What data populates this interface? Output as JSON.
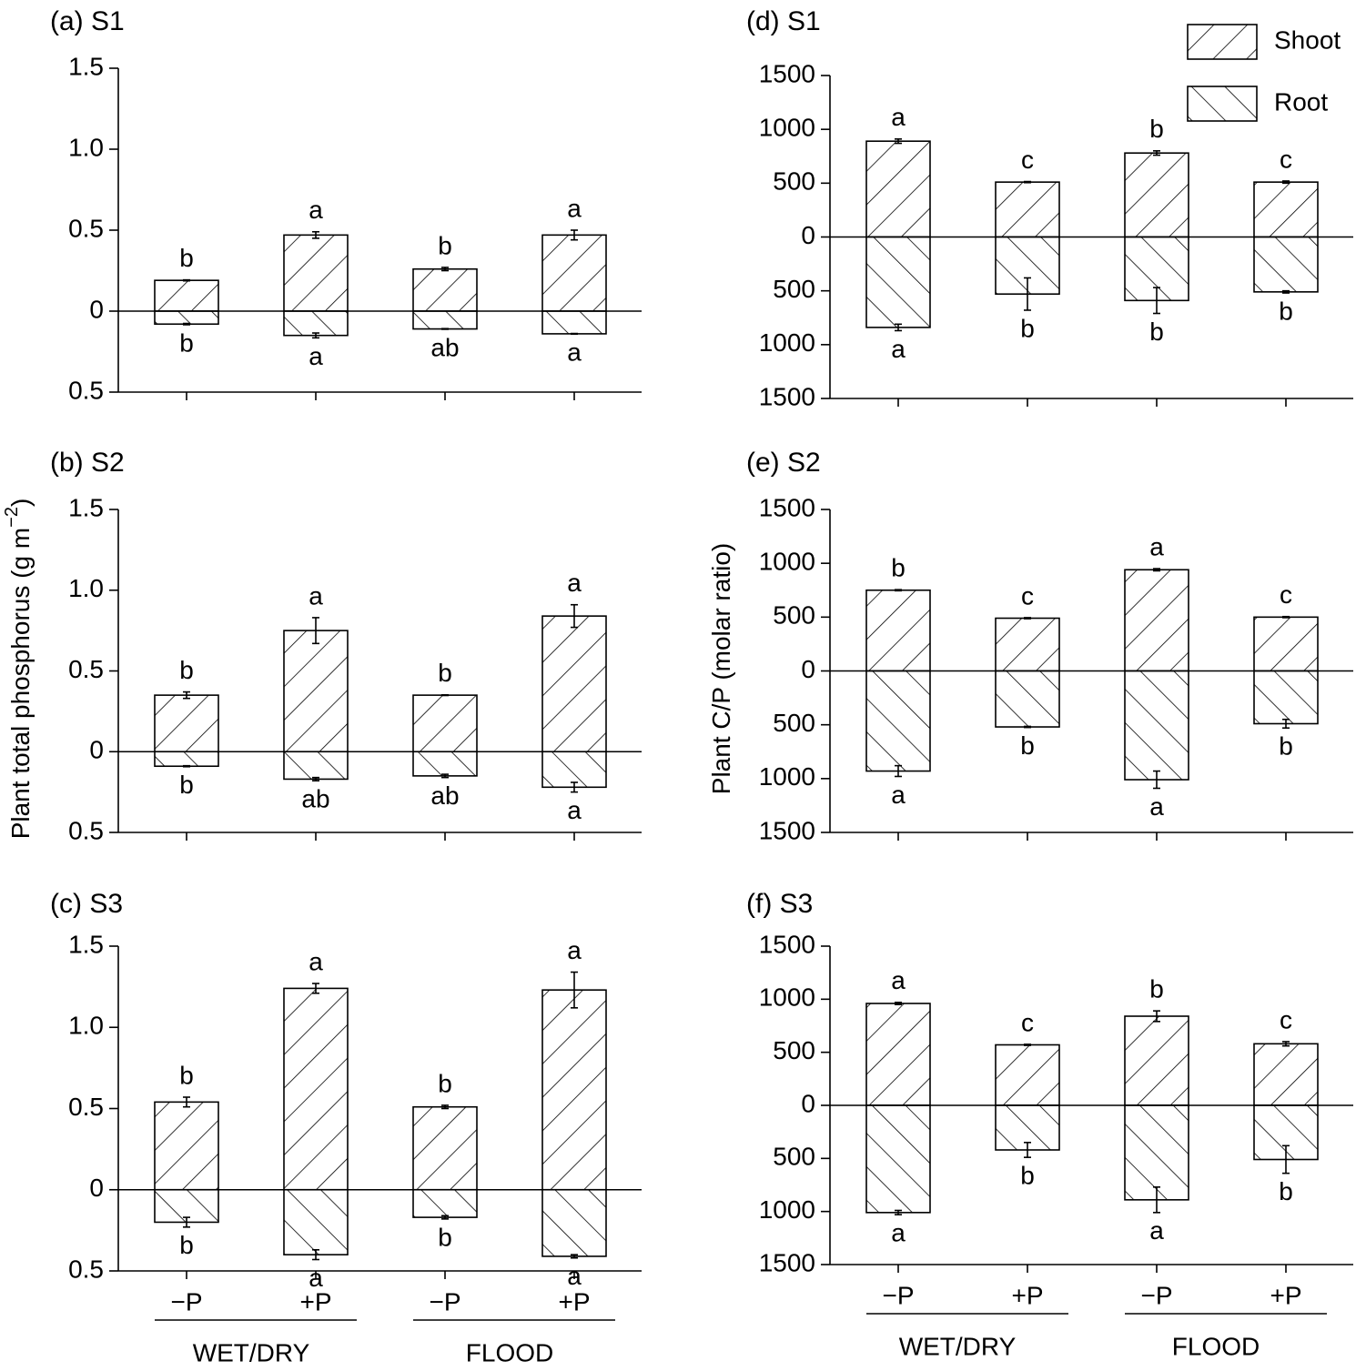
{
  "chart_data": [
    {
      "type": "bar",
      "title": "(a) S1",
      "ylim": [
        -0.5,
        1.5
      ],
      "yticks": [
        {
          "value": -0.5,
          "label": "0.5"
        },
        0,
        0.5,
        {
          "value": 1,
          "label": "1.0"
        },
        1.5
      ],
      "series": [
        {
          "color": "#000000",
          "hatch": "/",
          "values": [
            0.19,
            0.47,
            0.26,
            0.47
          ],
          "errors": [
            0.003,
            0.02,
            0.01,
            0.03
          ],
          "letters": [
            "b",
            "a",
            "b",
            "a"
          ]
        },
        {
          "color": "#000000",
          "hatch": "\\",
          "values": [
            -0.08,
            -0.15,
            -0.11,
            -0.14
          ],
          "errors": [
            0.004,
            0.015,
            0.002,
            0.002
          ],
          "letters": [
            "b",
            "a",
            "ab",
            "a"
          ]
        }
      ]
    },
    {
      "type": "bar",
      "title": "(b) S2",
      "ylabel": [
        "Plant total phosphorus (g m",
        "−2",
        ")"
      ],
      "ylim": [
        -0.5,
        1.5
      ],
      "yticks": [
        {
          "value": -0.5,
          "label": "0.5"
        },
        0,
        0.5,
        {
          "value": 1,
          "label": "1.0"
        },
        1.5
      ],
      "series": [
        {
          "color": "#000000",
          "hatch": "/",
          "values": [
            0.35,
            0.75,
            0.35,
            0.84
          ],
          "errors": [
            0.02,
            0.08,
            0.002,
            0.07
          ],
          "letters": [
            "b",
            "a",
            "b",
            "a"
          ]
        },
        {
          "color": "#000000",
          "hatch": "\\",
          "values": [
            -0.09,
            -0.17,
            -0.15,
            -0.22
          ],
          "errors": [
            0.003,
            0.01,
            0.01,
            0.03
          ],
          "letters": [
            "b",
            "ab",
            "ab",
            "a"
          ]
        }
      ]
    },
    {
      "type": "bar",
      "title": "(c) S3",
      "ylim": [
        -0.5,
        1.5
      ],
      "yticks": [
        {
          "value": -0.5,
          "label": "0.5"
        },
        0,
        0.5,
        {
          "value": 1,
          "label": "1.0"
        },
        1.5
      ],
      "categories": [
        "−P",
        "+P",
        "−P",
        "+P"
      ],
      "groups": [
        "WET/DRY",
        "FLOOD"
      ],
      "series": [
        {
          "color": "#000000",
          "hatch": "/",
          "values": [
            0.54,
            1.24,
            0.51,
            1.23
          ],
          "errors": [
            0.03,
            0.03,
            0.01,
            0.11
          ],
          "letters": [
            "b",
            "a",
            "b",
            "a"
          ]
        },
        {
          "color": "#000000",
          "hatch": "\\",
          "values": [
            -0.2,
            -0.4,
            -0.17,
            -0.41
          ],
          "errors": [
            0.03,
            0.03,
            0.01,
            0.01
          ],
          "letters": [
            "b",
            "a",
            "b",
            "a"
          ]
        }
      ]
    },
    {
      "type": "bar",
      "title": "(d) S1",
      "ylim": [
        -1500,
        1500
      ],
      "legend": true,
      "yticks": [
        {
          "value": -1500,
          "label": "1500"
        },
        {
          "value": -1000,
          "label": "1000"
        },
        {
          "value": -500,
          "label": "500"
        },
        0,
        500,
        1000,
        1500
      ],
      "series": [
        {
          "name": "Shoot",
          "color": "#000000",
          "hatch": "/",
          "values": [
            890,
            510,
            780,
            510
          ],
          "errors": [
            20,
            5,
            20,
            10
          ],
          "letters": [
            "a",
            "c",
            "b",
            "c"
          ]
        },
        {
          "name": "Root",
          "color": "#000000",
          "hatch": "\\",
          "values": [
            -840,
            -530,
            -590,
            -510
          ],
          "errors": [
            30,
            150,
            120,
            10
          ],
          "letters": [
            "a",
            "b",
            "b",
            "b"
          ]
        }
      ]
    },
    {
      "type": "bar",
      "title": "(e) S2",
      "ylabel": [
        "Plant C/P (molar ratio)"
      ],
      "ylim": [
        -1500,
        1500
      ],
      "yticks": [
        {
          "value": -1500,
          "label": "1500"
        },
        {
          "value": -1000,
          "label": "1000"
        },
        {
          "value": -500,
          "label": "500"
        },
        0,
        500,
        1000,
        1500
      ],
      "series": [
        {
          "color": "#000000",
          "hatch": "/",
          "values": [
            750,
            490,
            940,
            500
          ],
          "errors": [
            5,
            5,
            10,
            5
          ],
          "letters": [
            "b",
            "c",
            "a",
            "c"
          ]
        },
        {
          "color": "#000000",
          "hatch": "\\",
          "values": [
            -930,
            -520,
            -1010,
            -490
          ],
          "errors": [
            50,
            5,
            80,
            40
          ],
          "letters": [
            "a",
            "b",
            "a",
            "b"
          ]
        }
      ]
    },
    {
      "type": "bar",
      "title": "(f) S3",
      "ylim": [
        -1500,
        1500
      ],
      "yticks": [
        {
          "value": -1500,
          "label": "1500"
        },
        {
          "value": -1000,
          "label": "1000"
        },
        {
          "value": -500,
          "label": "500"
        },
        0,
        500,
        1000,
        1500
      ],
      "categories": [
        "−P",
        "+P",
        "−P",
        "+P"
      ],
      "groups": [
        "WET/DRY",
        "FLOOD"
      ],
      "series": [
        {
          "color": "#000000",
          "hatch": "/",
          "values": [
            960,
            570,
            840,
            580
          ],
          "errors": [
            10,
            5,
            50,
            20
          ],
          "letters": [
            "a",
            "c",
            "b",
            "c"
          ]
        },
        {
          "color": "#000000",
          "hatch": "\\",
          "values": [
            -1010,
            -420,
            -890,
            -510
          ],
          "errors": [
            20,
            70,
            120,
            130
          ],
          "letters": [
            "a",
            "b",
            "a",
            "b"
          ]
        }
      ]
    }
  ]
}
